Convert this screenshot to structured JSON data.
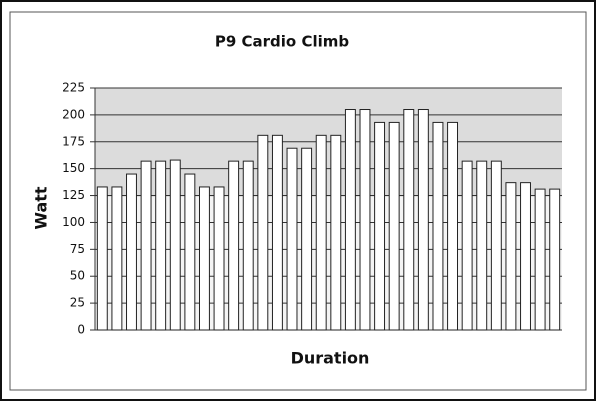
{
  "chart_data": {
    "type": "bar",
    "title": "P9 Cardio Climb",
    "x_label": "Duration",
    "y_label": "Watt",
    "categories": [
      null,
      null,
      null,
      null,
      null,
      null,
      null,
      null,
      null,
      null,
      null,
      null,
      null,
      null,
      null,
      null,
      null,
      null,
      null,
      null,
      null,
      null,
      null,
      null,
      null,
      null,
      null,
      null,
      null,
      null,
      null,
      null
    ],
    "values": [
      133,
      133,
      145,
      157,
      157,
      158,
      145,
      133,
      133,
      157,
      157,
      181,
      181,
      169,
      169,
      181,
      181,
      205,
      205,
      193,
      193,
      205,
      205,
      193,
      193,
      157,
      157,
      157,
      137,
      137,
      131,
      131
    ],
    "color": "#ffffff",
    "ylim": [
      0,
      225
    ],
    "yticks": [
      0,
      25,
      50,
      75,
      100,
      125,
      150,
      175,
      200,
      225
    ],
    "grid": true
  }
}
